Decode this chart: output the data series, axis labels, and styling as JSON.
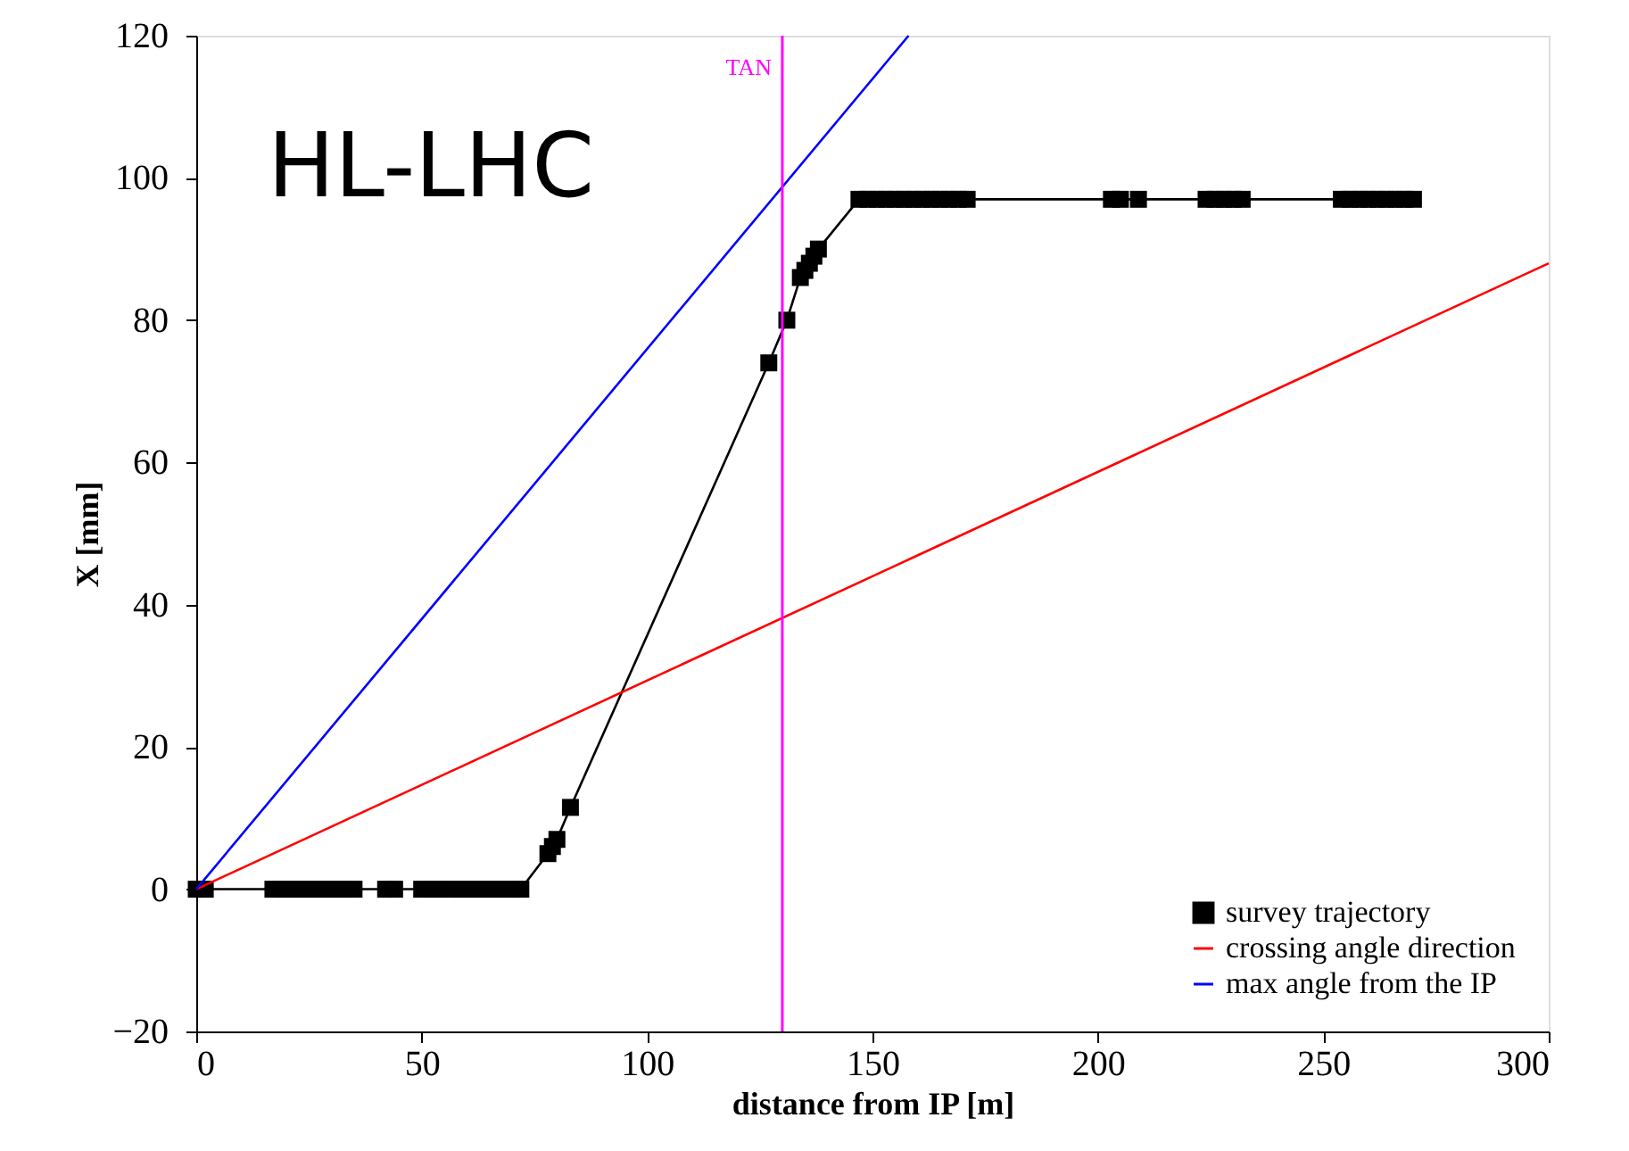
{
  "chart_data": {
    "type": "line",
    "xlabel": "distance from IP [m]",
    "ylabel": "X [mm]",
    "xlim": [
      0,
      300
    ],
    "xticks": [
      0,
      50,
      100,
      150,
      200,
      250,
      300
    ],
    "ylim": [
      -20,
      120
    ],
    "yticks": [
      -20,
      0,
      20,
      40,
      60,
      80,
      100,
      120
    ],
    "grid": false,
    "legend": "bottom right",
    "series": [
      {
        "name": "survey trajectory",
        "line_style": "solid",
        "marker": "square",
        "color": "#000000",
        "x": [
          0,
          2,
          17,
          19,
          21,
          23,
          25,
          27,
          29,
          31,
          33,
          35,
          42,
          44,
          50,
          52,
          54,
          56,
          58,
          60,
          62,
          64,
          66,
          68,
          70,
          72,
          78,
          79,
          80,
          83,
          127,
          131,
          134,
          135,
          136,
          137,
          138,
          147,
          149,
          151,
          153,
          155,
          157,
          159,
          161,
          163,
          165,
          167,
          169,
          171,
          203,
          205,
          209,
          224,
          226,
          228,
          230,
          232,
          254,
          256,
          258,
          260,
          262,
          264,
          266,
          268,
          270
        ],
        "values": [
          0,
          0,
          0,
          0,
          0,
          0,
          0,
          0,
          0,
          0,
          0,
          0,
          0,
          0,
          0,
          0,
          0,
          0,
          0,
          0,
          0,
          0,
          0,
          0,
          0,
          0,
          5,
          6,
          7,
          11.5,
          74,
          80,
          86,
          87,
          88,
          89,
          90,
          97,
          97,
          97,
          97,
          97,
          97,
          97,
          97,
          97,
          97,
          97,
          97,
          97,
          97,
          97,
          97,
          97,
          97,
          97,
          97,
          97,
          97,
          97,
          97,
          97,
          97,
          97,
          97,
          97,
          97
        ]
      },
      {
        "name": "crossing angle direction",
        "line_style": "solid",
        "marker": "none",
        "color": "#ff0000",
        "x": [
          0,
          300
        ],
        "values": [
          0,
          88
        ]
      },
      {
        "name": "max angle from the IP",
        "line_style": "solid",
        "marker": "none",
        "color": "#0000ff",
        "x": [
          0,
          158
        ],
        "values": [
          0,
          120
        ]
      }
    ],
    "ref_lines": [
      {
        "axis": "x",
        "value": 130,
        "label": "TAN",
        "color": "#ff00ff"
      }
    ],
    "annotations": [
      "HL-LHC"
    ]
  }
}
